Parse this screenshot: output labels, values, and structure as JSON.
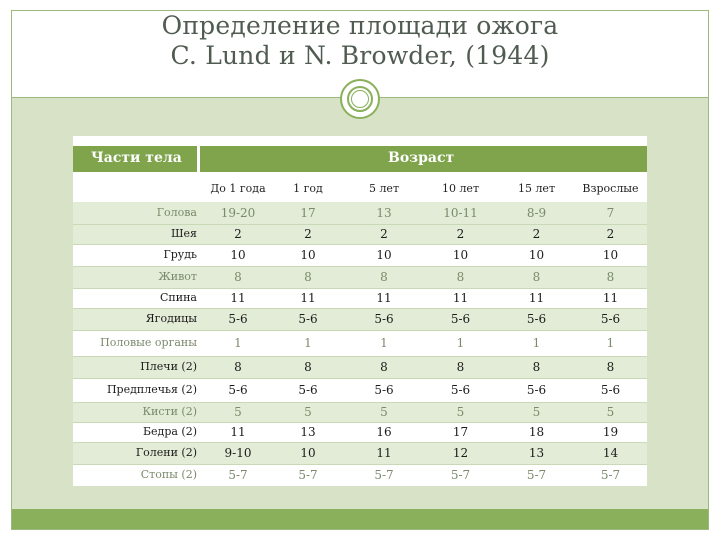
{
  "title": {
    "line1": "Определение площади ожога",
    "line2": "C. Lund и N. Browder, (1944)"
  },
  "table": {
    "header_body_parts": "Части тела",
    "header_age": "Возраст",
    "age_columns": [
      "До 1 года",
      "1 год",
      "5 лет",
      "10 лет",
      "15 лет",
      "Взрослые"
    ],
    "rows": [
      {
        "part": "Голова",
        "values": [
          "19-20",
          "17",
          "13",
          "10-11",
          "8-9",
          "7"
        ],
        "shaded": true,
        "faded": true
      },
      {
        "part": "Шея",
        "values": [
          "2",
          "2",
          "2",
          "2",
          "2",
          "2"
        ],
        "shaded": true,
        "faded": false
      },
      {
        "part": "Грудь",
        "values": [
          "10",
          "10",
          "10",
          "10",
          "10",
          "10"
        ],
        "shaded": false,
        "faded": false
      },
      {
        "part": "Живот",
        "values": [
          "8",
          "8",
          "8",
          "8",
          "8",
          "8"
        ],
        "shaded": true,
        "faded": true
      },
      {
        "part": "Спина",
        "values": [
          "11",
          "11",
          "11",
          "11",
          "11",
          "11"
        ],
        "shaded": false,
        "faded": false
      },
      {
        "part": "Ягодицы",
        "values": [
          "5-6",
          "5-6",
          "5-6",
          "5-6",
          "5-6",
          "5-6"
        ],
        "shaded": true,
        "faded": false
      },
      {
        "part": "Половые органы",
        "values": [
          "1",
          "1",
          "1",
          "1",
          "1",
          "1"
        ],
        "shaded": false,
        "faded": true
      },
      {
        "part": "Плечи (2)",
        "values": [
          "8",
          "8",
          "8",
          "8",
          "8",
          "8"
        ],
        "shaded": true,
        "faded": false
      },
      {
        "part": "Предплечья (2)",
        "values": [
          "5-6",
          "5-6",
          "5-6",
          "5-6",
          "5-6",
          "5-6"
        ],
        "shaded": false,
        "faded": false
      },
      {
        "part": "Кисти (2)",
        "values": [
          "5",
          "5",
          "5",
          "5",
          "5",
          "5"
        ],
        "shaded": true,
        "faded": true
      },
      {
        "part": "Бедра (2)",
        "values": [
          "11",
          "13",
          "16",
          "17",
          "18",
          "19"
        ],
        "shaded": false,
        "faded": false
      },
      {
        "part": "Голени (2)",
        "values": [
          "9-10",
          "10",
          "11",
          "12",
          "13",
          "14"
        ],
        "shaded": true,
        "faded": false
      },
      {
        "part": "Стопы (2)",
        "values": [
          "5-7",
          "5-7",
          "5-7",
          "5-7",
          "5-7",
          "5-7"
        ],
        "shaded": false,
        "faded": true
      }
    ]
  },
  "colors": {
    "header_green": "#7fa44c",
    "band_green": "#8ab05b",
    "body_bg": "#d7e2c7",
    "row_shade": "#e3ecd6"
  },
  "icons": {
    "medallion": "circle-ornament-icon"
  }
}
